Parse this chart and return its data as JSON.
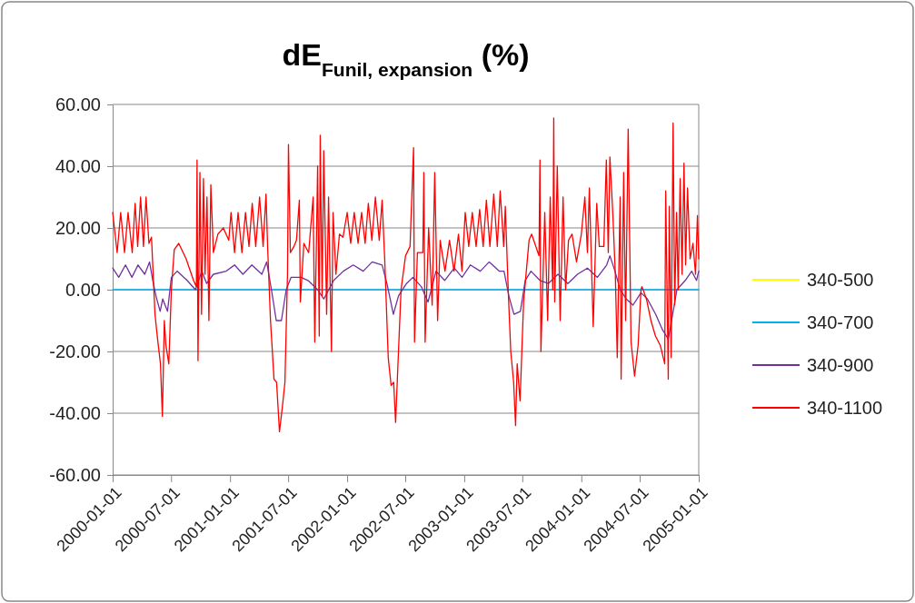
{
  "chart_data": {
    "type": "line",
    "title": "dE$_{Funil, expansion}$ (%)",
    "xlim": [
      "2000-01-01",
      "2005-01-01"
    ],
    "xticks": [
      "2000-01-01",
      "2000-07-01",
      "2001-01-01",
      "2001-07-01",
      "2002-01-01",
      "2002-07-01",
      "2003-01-01",
      "2003-07-01",
      "2004-01-01",
      "2004-07-01",
      "2005-01-01"
    ],
    "ylim": [
      -60,
      60
    ],
    "yticks": [
      {
        "value": -60,
        "label": "-60.00"
      },
      {
        "value": -40,
        "label": "-40.00"
      },
      {
        "value": -20,
        "label": "-20.00"
      },
      {
        "value": 0,
        "label": "0.00"
      },
      {
        "value": 20,
        "label": "20.00"
      },
      {
        "value": 40,
        "label": "40.00"
      },
      {
        "value": 60,
        "label": "60.00"
      }
    ],
    "grid": "y",
    "legend": "right",
    "marker": "none",
    "line_style": "solid",
    "series": [
      {
        "name": "340-500",
        "color": "#ffff00"
      },
      {
        "name": "340-700",
        "color": "#00b0f0",
        "x": [
          "2000-01-01",
          "2005-01-01"
        ],
        "values": [
          0,
          0
        ]
      },
      {
        "name": "340-900",
        "color": "#7030a0",
        "x": [
          "2000-01-01",
          "2000-01-20",
          "2000-02-10",
          "2000-03-01",
          "2000-03-20",
          "2000-04-10",
          "2000-04-25",
          "2000-05-05",
          "2000-05-15",
          "2000-05-28",
          "2000-06-05",
          "2000-06-20",
          "2000-07-02",
          "2000-07-20",
          "2000-08-20",
          "2000-09-15",
          "2000-10-05",
          "2000-10-20",
          "2000-11-10",
          "2000-12-20",
          "2001-01-15",
          "2001-02-10",
          "2001-03-10",
          "2001-04-10",
          "2001-04-25",
          "2001-05-10",
          "2001-05-25",
          "2001-06-10",
          "2001-06-25",
          "2001-07-10",
          "2001-08-10",
          "2001-09-01",
          "2001-10-01",
          "2001-10-20",
          "2001-11-20",
          "2001-12-20",
          "2002-01-20",
          "2002-02-20",
          "2002-03-20",
          "2002-04-20",
          "2002-05-05",
          "2002-05-25",
          "2002-06-10",
          "2002-07-05",
          "2002-07-25",
          "2002-08-20",
          "2002-09-10",
          "2002-10-05",
          "2002-11-01",
          "2002-12-01",
          "2002-12-25",
          "2003-01-20",
          "2003-02-20",
          "2003-03-20",
          "2003-04-20",
          "2003-05-05",
          "2003-05-20",
          "2003-06-05",
          "2003-06-25",
          "2003-07-10",
          "2003-07-28",
          "2003-08-25",
          "2003-09-20",
          "2003-10-20",
          "2003-11-20",
          "2003-12-20",
          "2004-01-20",
          "2004-02-20",
          "2004-03-20",
          "2004-03-30",
          "2004-04-15",
          "2004-05-01",
          "2004-05-20",
          "2004-06-10",
          "2004-07-05",
          "2004-07-25",
          "2004-08-20",
          "2004-09-10",
          "2004-09-28",
          "2004-10-10",
          "2004-10-25",
          "2004-11-20",
          "2004-12-10",
          "2004-12-25",
          "2005-01-01"
        ],
        "values": [
          7,
          4,
          8,
          4,
          8,
          5,
          9,
          3,
          -2,
          -7,
          -3,
          -7,
          4,
          6,
          3,
          0,
          6,
          2,
          5,
          6,
          8,
          5,
          8,
          5,
          9,
          0,
          -10,
          -10,
          0,
          4,
          4,
          3,
          0,
          -3,
          3,
          6,
          8,
          6,
          9,
          8,
          2,
          -8,
          -2,
          2,
          4,
          1,
          -4,
          6,
          3,
          7,
          4,
          8,
          6,
          9,
          6,
          6,
          -2,
          -8,
          -7,
          3,
          6,
          3,
          2,
          5,
          2,
          5,
          7,
          4,
          8,
          11,
          6,
          0,
          -3,
          -5,
          -1,
          -3,
          -8,
          -13,
          -16,
          -9,
          0,
          3,
          6,
          3,
          6
        ]
      },
      {
        "name": "340-1100",
        "color": "#ff0000",
        "x": [
          "2000-01-01",
          "2000-01-15",
          "2000-01-26",
          "2000-02-07",
          "2000-02-18",
          "2000-03-02",
          "2000-03-11",
          "2000-03-19",
          "2000-03-28",
          "2000-04-06",
          "2000-04-14",
          "2000-04-23",
          "2000-05-01",
          "2000-05-12",
          "2000-05-20",
          "2000-05-29",
          "2000-06-04",
          "2000-06-10",
          "2000-06-15",
          "2000-06-24",
          "2000-07-02",
          "2000-07-11",
          "2000-07-25",
          "2000-08-17",
          "2000-09-09",
          "2000-09-18",
          "2000-09-20",
          "2000-09-23",
          "2000-09-29",
          "2000-10-04",
          "2000-10-10",
          "2000-10-15",
          "2000-10-21",
          "2000-10-27",
          "2000-11-02",
          "2000-11-10",
          "2000-11-24",
          "2000-12-11",
          "2000-12-28",
          "2001-01-04",
          "2001-01-15",
          "2001-01-26",
          "2001-02-07",
          "2001-02-18",
          "2001-03-01",
          "2001-03-11",
          "2001-03-22",
          "2001-04-03",
          "2001-04-14",
          "2001-04-23",
          "2001-04-28",
          "2001-05-07",
          "2001-05-18",
          "2001-05-26",
          "2001-06-04",
          "2001-06-13",
          "2001-06-21",
          "2001-06-29",
          "2001-07-02",
          "2001-07-08",
          "2001-07-19",
          "2001-07-27",
          "2001-08-05",
          "2001-08-08",
          "2001-08-19",
          "2001-09-03",
          "2001-09-17",
          "2001-09-22",
          "2001-10-01",
          "2001-10-06",
          "2001-10-09",
          "2001-10-15",
          "2001-10-20",
          "2001-10-29",
          "2001-11-04",
          "2001-11-13",
          "2001-11-18",
          "2001-11-27",
          "2001-12-08",
          "2001-12-19",
          "2002-01-01",
          "2002-01-12",
          "2002-01-23",
          "2002-02-04",
          "2002-02-15",
          "2002-02-26",
          "2002-03-08",
          "2002-03-19",
          "2002-03-30",
          "2002-04-11",
          "2002-04-20",
          "2002-04-28",
          "2002-05-09",
          "2002-05-18",
          "2002-05-26",
          "2002-06-01",
          "2002-06-10",
          "2002-06-18",
          "2002-07-02",
          "2002-07-16",
          "2002-07-27",
          "2002-07-30",
          "2002-08-08",
          "2002-08-25",
          "2002-08-28",
          "2002-09-01",
          "2002-09-12",
          "2002-09-23",
          "2002-10-01",
          "2002-10-10",
          "2002-10-18",
          "2002-11-02",
          "2002-11-16",
          "2002-11-30",
          "2002-12-14",
          "2002-12-25",
          "2003-01-04",
          "2003-01-15",
          "2003-01-26",
          "2003-02-07",
          "2003-02-18",
          "2003-03-01",
          "2003-03-11",
          "2003-03-22",
          "2003-04-03",
          "2003-04-14",
          "2003-04-23",
          "2003-05-04",
          "2003-05-09",
          "2003-05-18",
          "2003-05-26",
          "2003-06-04",
          "2003-06-10",
          "2003-06-15",
          "2003-06-24",
          "2003-07-05",
          "2003-07-22",
          "2003-07-30",
          "2003-08-22",
          "2003-08-25",
          "2003-08-28",
          "2003-09-09",
          "2003-09-18",
          "2003-09-26",
          "2003-10-04",
          "2003-10-07",
          "2003-10-10",
          "2003-10-18",
          "2003-10-27",
          "2003-11-05",
          "2003-11-13",
          "2003-11-22",
          "2003-12-03",
          "2003-12-17",
          "2004-01-01",
          "2004-01-12",
          "2004-01-20",
          "2004-01-26",
          "2004-02-07",
          "2004-02-18",
          "2004-02-26",
          "2004-03-11",
          "2004-03-19",
          "2004-03-25",
          "2004-03-30",
          "2004-04-08",
          "2004-04-16",
          "2004-04-22",
          "2004-05-01",
          "2004-05-04",
          "2004-05-12",
          "2004-05-18",
          "2004-05-26",
          "2004-06-04",
          "2004-06-15",
          "2004-06-26",
          "2004-07-05",
          "2004-07-08",
          "2004-07-22",
          "2004-08-05",
          "2004-08-19",
          "2004-09-03",
          "2004-09-17",
          "2004-09-20",
          "2004-09-28",
          "2004-10-01",
          "2004-10-07",
          "2004-10-13",
          "2004-10-18",
          "2004-10-24",
          "2004-10-29",
          "2004-11-04",
          "2004-11-10",
          "2004-11-16",
          "2004-11-21",
          "2004-11-27",
          "2004-12-05",
          "2004-12-14",
          "2004-12-22",
          "2004-12-28",
          "2005-01-01"
        ],
        "values": [
          25,
          12,
          25,
          12,
          25,
          12,
          28,
          14,
          30,
          14,
          30,
          15,
          17,
          -8,
          -16,
          -24,
          -41,
          -10,
          -18,
          -24,
          0,
          13,
          15,
          10,
          3,
          1,
          42,
          -23,
          38,
          -8,
          36,
          5,
          30,
          -10,
          34,
          12,
          18,
          20,
          16,
          25,
          12,
          25,
          12,
          25,
          14,
          28,
          14,
          30,
          14,
          31,
          14,
          -10,
          -29,
          -30,
          -46,
          -38,
          -30,
          5,
          47,
          12,
          14,
          16,
          29,
          -4,
          15,
          12,
          30,
          -17,
          40,
          -15,
          50,
          -2,
          45,
          -8,
          30,
          -20,
          25,
          5,
          18,
          17,
          25,
          15,
          25,
          15,
          25,
          15,
          28,
          16,
          30,
          16,
          29,
          10,
          -22,
          -31,
          -30,
          -43,
          -20,
          0,
          11,
          14,
          46,
          -17,
          12,
          12,
          38,
          -17,
          20,
          -5,
          38,
          -10,
          16,
          6,
          16,
          6,
          18,
          6,
          25,
          14,
          25,
          14,
          26,
          14,
          29,
          14,
          31,
          14,
          32,
          14,
          27,
          0,
          -20,
          -30,
          -44,
          -24,
          -36,
          -4,
          16,
          18,
          11,
          42,
          -20,
          25,
          -10,
          30,
          0,
          55.6,
          -4,
          40,
          -10,
          30,
          0,
          16,
          18,
          9,
          18,
          30,
          12,
          33,
          -12,
          28,
          14,
          14,
          42,
          12,
          43,
          25,
          5,
          -22,
          30,
          -29,
          38,
          -10,
          52,
          -17,
          -28,
          -18,
          0,
          1,
          -3,
          -10,
          -15,
          -18,
          -24,
          32,
          -29,
          27,
          -22,
          54,
          -5,
          25,
          0,
          36,
          5,
          41,
          8,
          33,
          10,
          15,
          5,
          24,
          10
        ]
      }
    ]
  }
}
